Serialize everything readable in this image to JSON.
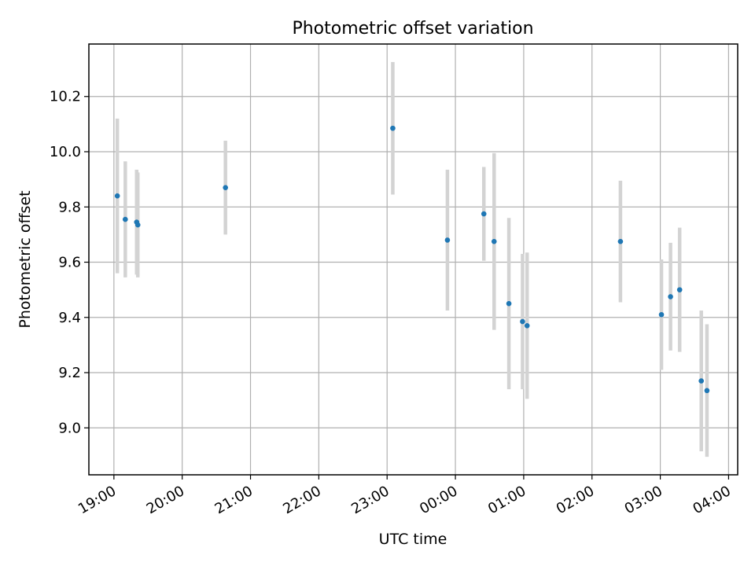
{
  "chart_data": {
    "type": "scatter",
    "title": "Photometric offset variation",
    "xlabel": "UTC time",
    "ylabel": "Photometric offset",
    "x_ticks": [
      "19:00",
      "20:00",
      "21:00",
      "22:00",
      "23:00",
      "00:00",
      "01:00",
      "02:00",
      "03:00",
      "04:00"
    ],
    "xlim": [
      "18:38",
      "04:08"
    ],
    "y_ticks": [
      "9.0",
      "9.2",
      "9.4",
      "9.6",
      "9.8",
      "10.0",
      "10.2"
    ],
    "ylim": [
      8.83,
      10.39
    ],
    "grid": true,
    "point_color": "#1f77b4",
    "errorbar_color": "#d3d3d3",
    "series": [
      {
        "points": [
          {
            "x": "19:03",
            "y": 9.84,
            "err": 0.28
          },
          {
            "x": "19:10",
            "y": 9.755,
            "err": 0.21
          },
          {
            "x": "19:20",
            "y": 9.745,
            "err": 0.19
          },
          {
            "x": "19:21",
            "y": 9.735,
            "err": 0.19
          },
          {
            "x": "20:38",
            "y": 9.87,
            "err": 0.17
          },
          {
            "x": "23:05",
            "y": 10.085,
            "err": 0.24
          },
          {
            "x": "23:53",
            "y": 9.68,
            "err": 0.255
          },
          {
            "x": "00:25",
            "y": 9.775,
            "err": 0.17
          },
          {
            "x": "00:34",
            "y": 9.675,
            "err": 0.32
          },
          {
            "x": "00:47",
            "y": 9.45,
            "err": 0.31
          },
          {
            "x": "00:59",
            "y": 9.385,
            "err": 0.245
          },
          {
            "x": "01:03",
            "y": 9.37,
            "err": 0.265
          },
          {
            "x": "02:25",
            "y": 9.675,
            "err": 0.22
          },
          {
            "x": "03:01",
            "y": 9.41,
            "err": 0.2
          },
          {
            "x": "03:09",
            "y": 9.475,
            "err": 0.195
          },
          {
            "x": "03:17",
            "y": 9.5,
            "err": 0.225
          },
          {
            "x": "03:36",
            "y": 9.17,
            "err": 0.255
          },
          {
            "x": "03:41",
            "y": 9.135,
            "err": 0.24
          }
        ]
      }
    ]
  }
}
